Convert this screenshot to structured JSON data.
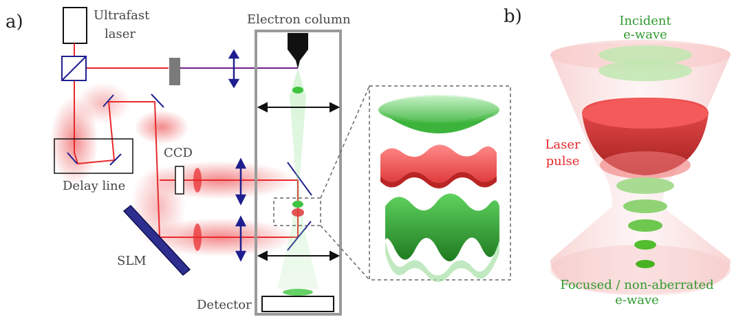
{
  "panels": {
    "a": {
      "panel_label": "a)",
      "labels": {
        "ultrafast_laser": [
          "Ultrafast",
          "laser"
        ],
        "electron_column": "Electron column",
        "ccd": "CCD",
        "delay_line": "Delay line",
        "slm": "SLM",
        "detector": "Detector"
      }
    },
    "b": {
      "panel_label": "b)",
      "labels": {
        "incident": [
          "Incident",
          "e-wave"
        ],
        "laser_pulse": [
          "Laser",
          "pulse"
        ],
        "focused": [
          "Focused / non-aberrated",
          "e-wave"
        ]
      }
    }
  },
  "colors": {
    "laser_beam": "#e8282b",
    "laser_glow": "#f5a3a3",
    "electron_beam": "#6d1f8f",
    "electron_wave": "#4cc94c",
    "optics": "#1f1f8f",
    "column_frame": "#9a9a9a",
    "label_gray": "#555555",
    "label_green": "#2f9a2f",
    "label_red": "#e8282b"
  }
}
